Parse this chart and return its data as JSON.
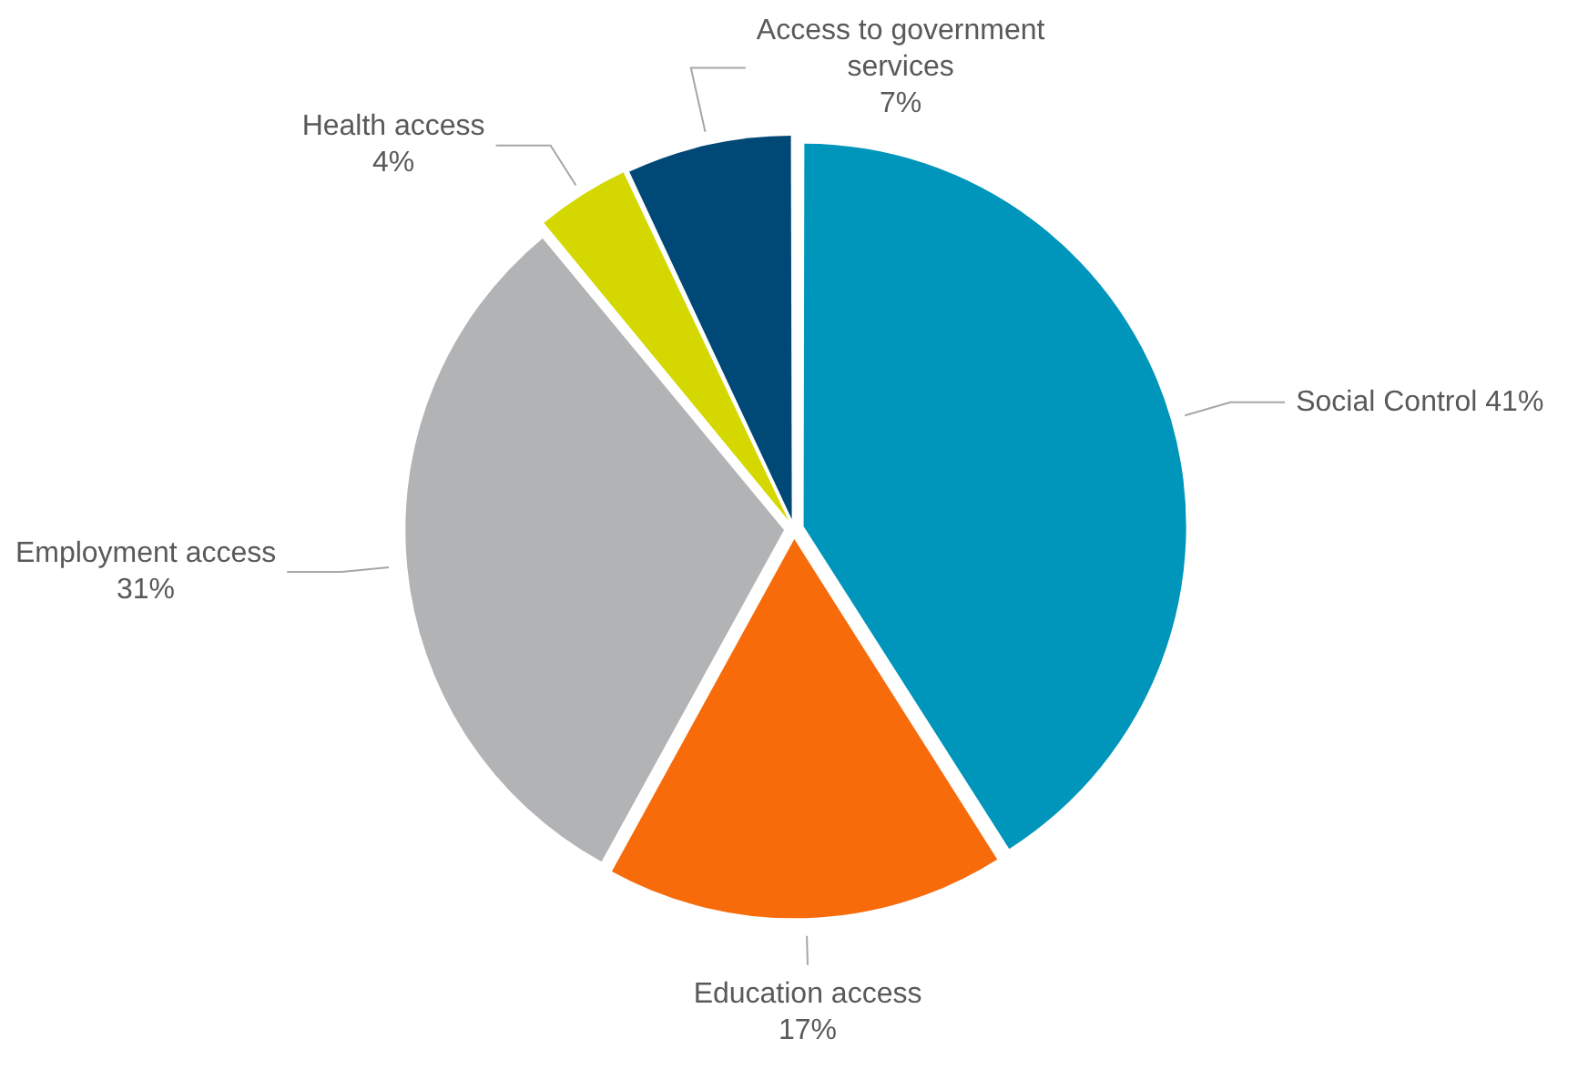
{
  "chart_data": {
    "type": "pie",
    "categories": [
      "Social Control",
      "Education access",
      "Employment access",
      "Health access",
      "Access to government services"
    ],
    "values": [
      41,
      17,
      31,
      4,
      7
    ],
    "colors": [
      "#0095ba",
      "#f76b0a",
      "#b2b3b5",
      "#d4d800",
      "#004876"
    ],
    "value_labels": [
      "41%",
      "17%",
      "31%",
      "4%",
      "7%"
    ],
    "legend": false
  }
}
